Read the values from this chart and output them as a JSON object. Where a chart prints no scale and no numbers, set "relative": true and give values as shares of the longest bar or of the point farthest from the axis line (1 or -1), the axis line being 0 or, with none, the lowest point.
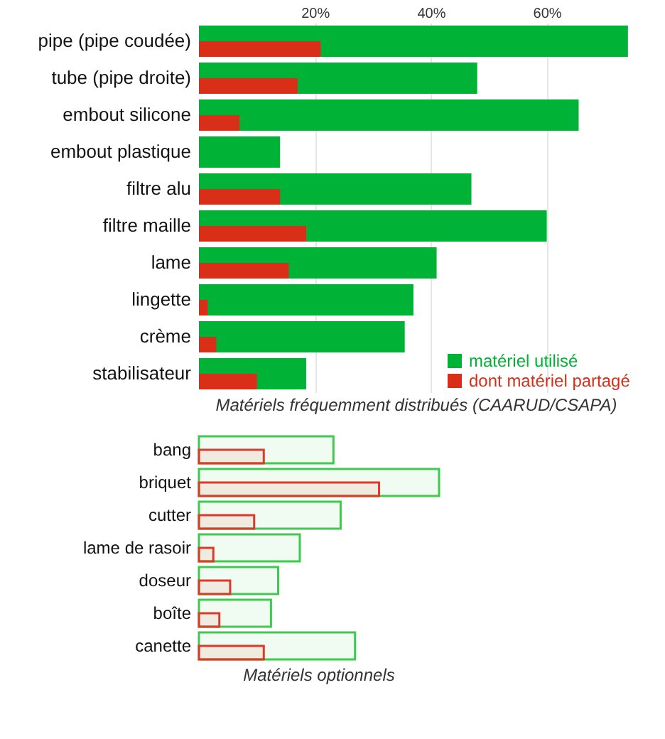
{
  "chart_data": [
    {
      "type": "bar",
      "orientation": "horizontal",
      "title": "Matériels fréquemment distribués (CAARUD/CSAPA)",
      "categories": [
        "pipe (pipe coudée)",
        "tube (pipe droite)",
        "embout silicone",
        "embout plastique",
        "filtre alu",
        "filtre maille",
        "lame",
        "lingette",
        "crème",
        "stabilisateur"
      ],
      "series": [
        {
          "name": "matériel utilisé",
          "color": "#00b336",
          "values": [
            74,
            48,
            65.5,
            14,
            47,
            60,
            41,
            37,
            35.5,
            18.5
          ]
        },
        {
          "name": "dont matériel partagé",
          "color": "#d92e17",
          "values": [
            21,
            17,
            7,
            null,
            14,
            18.5,
            15.5,
            1.5,
            3,
            10
          ]
        }
      ],
      "xlim": [
        0,
        75
      ],
      "xticks": [
        {
          "value": 20,
          "label": "20%"
        },
        {
          "value": 40,
          "label": "40%"
        },
        {
          "value": 60,
          "label": "60%"
        }
      ],
      "grid": "x",
      "legend": "bottom right"
    },
    {
      "type": "bar",
      "orientation": "horizontal",
      "title": "Matériels  optionnels",
      "relative": true,
      "categories": [
        "bang",
        "briquet",
        "cutter",
        "lame de rasoir",
        "doseur",
        "boîte",
        "canette"
      ],
      "series": [
        {
          "color": "#3ec94f",
          "values": [
            0.56,
            1,
            0.59,
            0.42,
            0.33,
            0.3,
            0.65
          ]
        },
        {
          "color": "#e0392a",
          "values": [
            0.27,
            0.75,
            0.23,
            0.06,
            0.13,
            0.085,
            0.27
          ]
        }
      ]
    }
  ]
}
